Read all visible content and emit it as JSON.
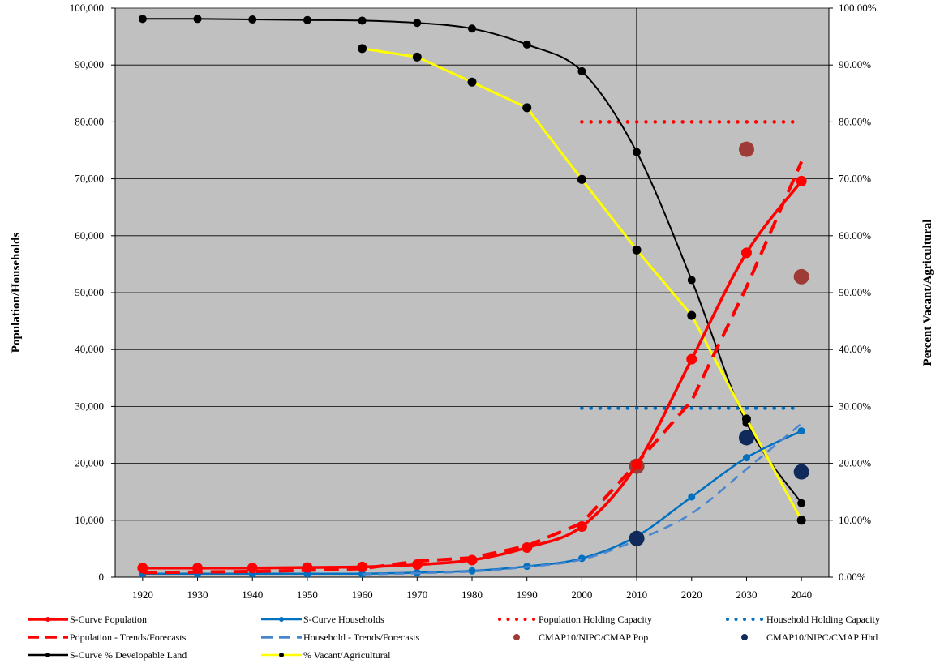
{
  "chart_data": {
    "type": "line",
    "title": "",
    "xlabel": "",
    "ylabel": "Population/Households",
    "y2label": "Percent Vacant/Agricultural",
    "x": [
      1920,
      1930,
      1940,
      1950,
      1960,
      1970,
      1980,
      1990,
      2000,
      2010,
      2020,
      2030,
      2040
    ],
    "xlim": [
      1915,
      2045
    ],
    "ylim": [
      0,
      100000
    ],
    "y2lim": [
      0,
      1
    ],
    "x_ticks": [
      "1920",
      "1930",
      "1940",
      "1950",
      "1960",
      "1970",
      "1980",
      "1990",
      "2000",
      "2010",
      "2020",
      "2030",
      "2040"
    ],
    "y_ticks": [
      "0",
      "10,000",
      "20,000",
      "30,000",
      "40,000",
      "50,000",
      "60,000",
      "70,000",
      "80,000",
      "90,000",
      "100,000"
    ],
    "y2_ticks": [
      "0.00%",
      "10.00%",
      "20.00%",
      "30.00%",
      "40.00%",
      "50.00%",
      "60.00%",
      "70.00%",
      "80.00%",
      "90.00%",
      "100.00%"
    ],
    "grid": "horizontal",
    "plot_background": "#c0c0c0",
    "reference_line_x": 2010,
    "legend_position": "bottom",
    "series": [
      {
        "name": "S-Curve Population",
        "axis": "left",
        "style": "solid",
        "color": "#ff0000",
        "x": [
          1920,
          1930,
          1940,
          1950,
          1960,
          1970,
          1980,
          1990,
          2000,
          2010,
          2020,
          2030,
          2040
        ],
        "values": [
          1600,
          1600,
          1600,
          1700,
          1800,
          2200,
          3000,
          5200,
          8900,
          19800,
          38300,
          57000,
          69600
        ]
      },
      {
        "name": "S-Curve Households",
        "axis": "left",
        "style": "solid",
        "color": "#0070c0",
        "x": [
          1920,
          1930,
          1940,
          1950,
          1960,
          1970,
          1980,
          1990,
          2000,
          2010,
          2020,
          2030,
          2040
        ],
        "values": [
          600,
          600,
          600,
          600,
          600,
          800,
          1100,
          1900,
          3300,
          7200,
          14100,
          21000,
          25700
        ]
      },
      {
        "name": "Population Holding Capacity",
        "axis": "left",
        "style": "dotted",
        "color": "#ff0000",
        "x": [
          2000,
          2040
        ],
        "values": [
          80000,
          80000
        ]
      },
      {
        "name": "Household Holding Capacity",
        "axis": "left",
        "style": "dotted",
        "color": "#0070c0",
        "x": [
          2000,
          2040
        ],
        "values": [
          29700,
          29700
        ]
      },
      {
        "name": "Population - Trends/Forecasts",
        "axis": "left",
        "style": "dashed",
        "color": "#ff0000",
        "x": [
          1920,
          1930,
          1940,
          1950,
          1960,
          1970,
          1980,
          1990,
          2000,
          2010,
          2020,
          2030,
          2040
        ],
        "values": [
          800,
          900,
          1000,
          1200,
          1500,
          2800,
          3400,
          5500,
          9500,
          20000,
          31000,
          51000,
          73000
        ]
      },
      {
        "name": "Household - Trends/Forecasts",
        "axis": "left",
        "style": "dashed",
        "color": "#4a86d0",
        "x": [
          1960,
          1970,
          1980,
          1990,
          2000,
          2010,
          2020,
          2030,
          2040
        ],
        "values": [
          500,
          700,
          1000,
          1800,
          3100,
          6500,
          11200,
          19000,
          27000
        ]
      },
      {
        "name": "CMAP10/NIPC/CMAP Pop",
        "axis": "left",
        "style": "marker",
        "color": "#9e3b36",
        "x": [
          2010,
          2030,
          2040
        ],
        "values": [
          19500,
          75200,
          52800
        ]
      },
      {
        "name": "CMAP10/NIPC/CMAP Hhd",
        "axis": "left",
        "style": "marker",
        "color": "#102a5c",
        "x": [
          2010,
          2030,
          2040
        ],
        "values": [
          6800,
          24500,
          18500
        ]
      },
      {
        "name": "S-Curve % Developable Land",
        "axis": "right",
        "style": "solid",
        "color": "#000000",
        "x": [
          1920,
          1930,
          1940,
          1950,
          1960,
          1970,
          1980,
          1990,
          2000,
          2010,
          2020,
          2030,
          2040
        ],
        "values": [
          0.981,
          0.981,
          0.98,
          0.979,
          0.978,
          0.974,
          0.964,
          0.936,
          0.889,
          0.747,
          0.522,
          0.271,
          0.13
        ]
      },
      {
        "name": "% Vacant/Agricultural",
        "axis": "right",
        "style": "solid",
        "color": "#ffff00",
        "x": [
          1960,
          1970,
          1980,
          1990,
          2000,
          2010,
          2020,
          2030,
          2040
        ],
        "values": [
          0.929,
          0.914,
          0.87,
          0.825,
          0.699,
          0.575,
          0.46,
          0.278,
          0.1
        ]
      }
    ]
  }
}
